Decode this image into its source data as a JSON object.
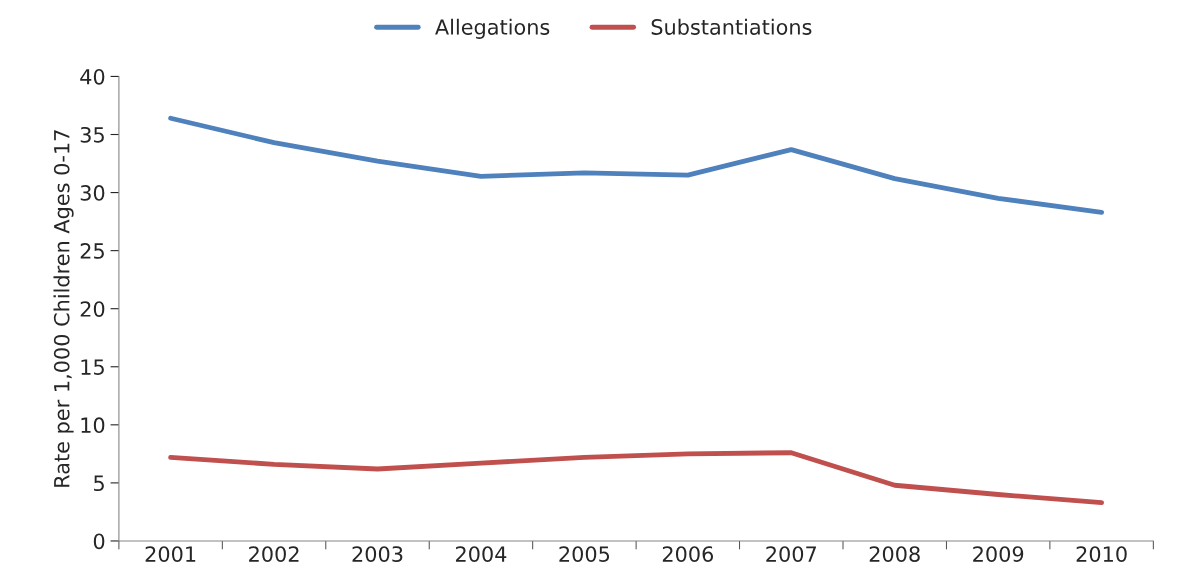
{
  "chart_data": {
    "type": "line",
    "ylabel": "Rate per 1,000 Children Ages 0-17",
    "categories": [
      "2001",
      "2002",
      "2003",
      "2004",
      "2005",
      "2006",
      "2007",
      "2008",
      "2009",
      "2010"
    ],
    "series": [
      {
        "name": "Allegations",
        "color": "#4f81bd",
        "values": [
          36.4,
          34.3,
          32.7,
          31.4,
          31.7,
          31.5,
          33.7,
          31.2,
          29.5,
          28.3
        ]
      },
      {
        "name": "Substantiations",
        "color": "#c0504d",
        "values": [
          7.2,
          6.6,
          6.2,
          6.7,
          7.2,
          7.5,
          7.6,
          4.8,
          4.0,
          3.3
        ]
      }
    ],
    "ylim": [
      0,
      40
    ],
    "yticks": [
      0,
      5,
      10,
      15,
      20,
      25,
      30,
      35,
      40
    ],
    "grid": false,
    "legend": "top",
    "marker": "none",
    "line_style": "solid"
  }
}
